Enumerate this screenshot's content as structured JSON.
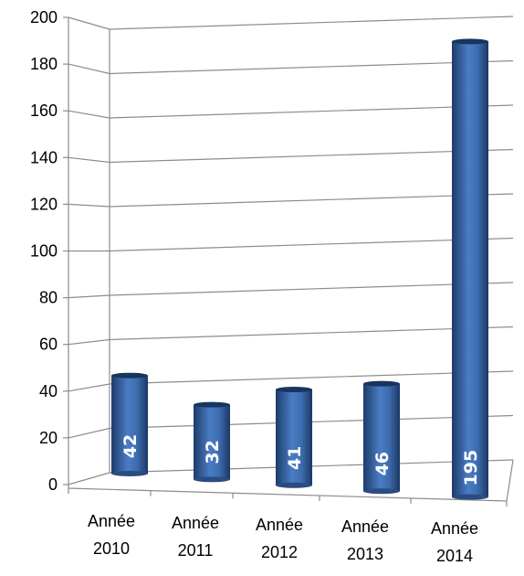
{
  "chart_data": {
    "type": "bar",
    "title": "",
    "xlabel": "",
    "ylabel": "",
    "ylim": [
      0,
      200
    ],
    "yticks": [
      0,
      20,
      40,
      60,
      80,
      100,
      120,
      140,
      160,
      180,
      200
    ],
    "grid": true,
    "legend": "none",
    "categories": [
      [
        "Année",
        "2010"
      ],
      [
        "Année",
        "2011"
      ],
      [
        "Année",
        "2012"
      ],
      [
        "Année",
        "2013"
      ],
      [
        "Année",
        "2014"
      ]
    ],
    "values": [
      42,
      32,
      41,
      46,
      195
    ],
    "data_labels": [
      "42",
      "32",
      "41",
      "46",
      "195"
    ],
    "colors": {
      "bar_dark": "#1f3f6e",
      "bar_mid": "#3f6db3",
      "bar_light": "#5c8fd6",
      "bar_top": "#16355f",
      "gridline": "#8c8c8c",
      "axis": "#8c8c8c"
    }
  }
}
